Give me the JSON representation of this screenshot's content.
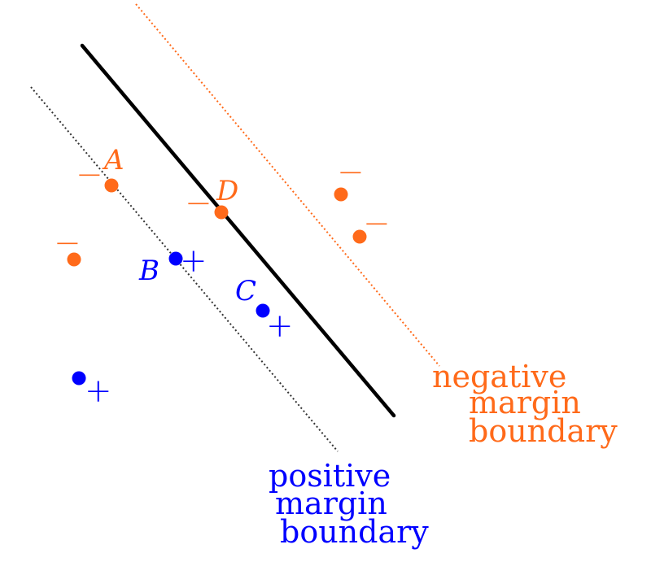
{
  "colors": {
    "positive": "#0000ff",
    "negative": "#ff6a1a",
    "boundary": "#000000",
    "positive_margin_line": "#333333",
    "negative_margin_line": "#ff6a1a"
  },
  "points": {
    "A": {
      "label": "A",
      "sign": "−"
    },
    "B": {
      "label": "B",
      "sign": "+"
    },
    "C": {
      "label": "C",
      "sign": "+"
    },
    "D": {
      "label": "D",
      "sign": "−"
    },
    "neg_1": {
      "sign": "−"
    },
    "neg_2": {
      "sign": "−"
    },
    "neg_3": {
      "sign": "−"
    },
    "pos_1": {
      "sign": "+"
    }
  },
  "negative_caption": {
    "line1": "negative",
    "line2": "margin",
    "line3": "boundary"
  },
  "positive_caption": {
    "line1": "positive",
    "line2": "margin",
    "line3": "boundary"
  }
}
